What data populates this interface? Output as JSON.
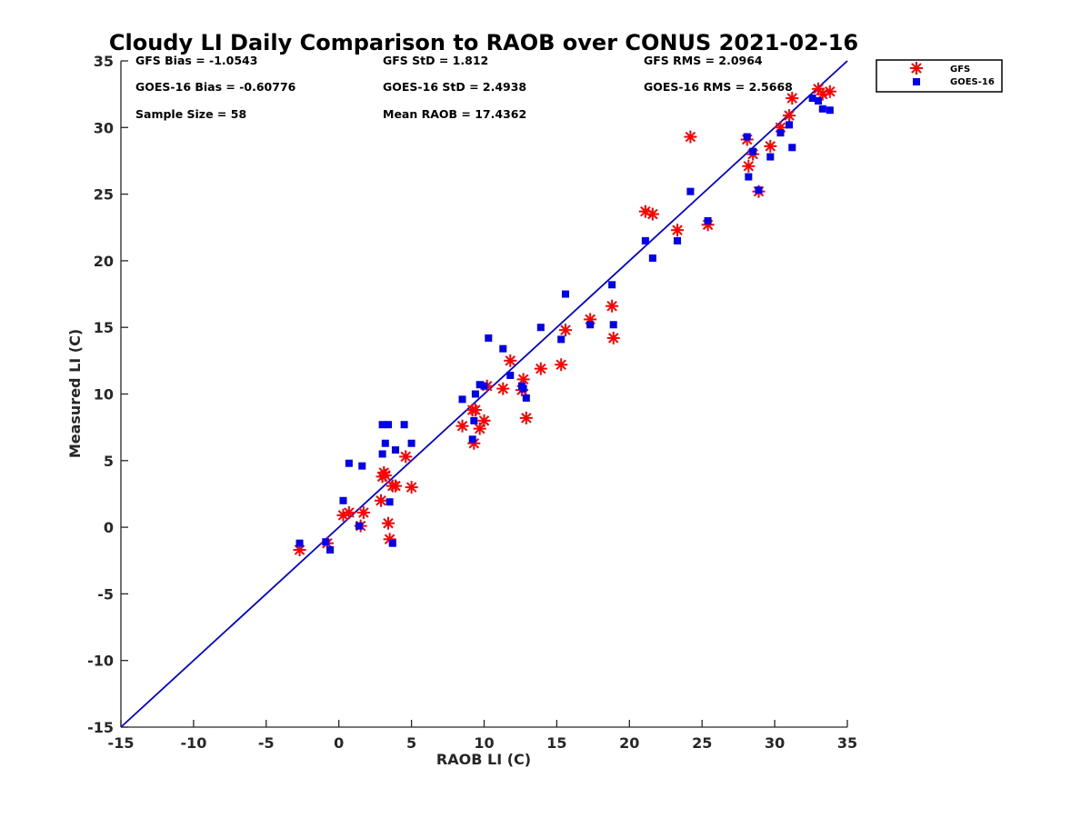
{
  "chart_data": {
    "type": "scatter",
    "title": "Cloudy LI Daily Comparison to RAOB over CONUS 2021-02-16",
    "xlabel": "RAOB LI (C)",
    "ylabel": "Measured LI (C)",
    "xlim": [
      -15,
      35
    ],
    "ylim": [
      -15,
      35
    ],
    "xticks": [
      -15,
      -10,
      -5,
      0,
      5,
      10,
      15,
      20,
      25,
      30,
      35
    ],
    "yticks": [
      -15,
      -10,
      -5,
      0,
      5,
      10,
      15,
      20,
      25,
      30,
      35
    ],
    "grid": false,
    "legend_position": "outside-top-right",
    "reference_line": {
      "x": [
        -15,
        35
      ],
      "y": [
        -15,
        35
      ],
      "color": "#0000dd"
    },
    "stats": [
      "GFS Bias = -1.0543",
      "GFS StD = 1.812",
      "GFS RMS = 2.0964",
      "GOES-16 Bias = -0.60776",
      "GOES-16 StD = 2.4938",
      "GOES-16 RMS = 2.5668",
      "Sample Size = 58",
      "Mean RAOB = 17.4362"
    ],
    "series": [
      {
        "name": "GFS",
        "marker": "asterisk",
        "color": "#ff0000",
        "x": [
          -2.7,
          -0.8,
          0.3,
          0.7,
          1.5,
          1.7,
          2.9,
          3.0,
          3.1,
          3.2,
          3.4,
          3.5,
          3.7,
          3.9,
          4.6,
          5.0,
          8.5,
          9.2,
          9.3,
          9.4,
          9.7,
          10.0,
          10.2,
          11.3,
          11.8,
          12.6,
          12.7,
          12.9,
          13.9,
          15.3,
          15.6,
          17.3,
          18.8,
          18.9,
          21.1,
          21.6,
          23.3,
          24.2,
          25.4,
          28.1,
          28.2,
          28.5,
          28.9,
          29.7,
          30.4,
          31.0,
          31.2,
          33.0,
          33.3,
          33.8
        ],
        "y": [
          -1.7,
          -1.2,
          0.9,
          1.1,
          0.1,
          1.1,
          2.0,
          3.8,
          4.1,
          3.9,
          0.3,
          -0.9,
          3.1,
          3.1,
          5.3,
          3.0,
          7.6,
          8.8,
          6.3,
          8.8,
          7.4,
          8.0,
          10.6,
          10.4,
          12.5,
          10.3,
          11.1,
          8.2,
          11.9,
          12.2,
          14.8,
          15.6,
          16.6,
          14.2,
          23.7,
          23.5,
          22.3,
          29.3,
          22.7,
          29.1,
          27.1,
          28.0,
          25.2,
          28.6,
          30.0,
          30.9,
          32.2,
          32.9,
          32.5,
          32.7
        ]
      },
      {
        "name": "GOES-16",
        "marker": "square",
        "color": "#0000ee",
        "x": [
          -2.7,
          -0.9,
          -0.6,
          0.3,
          0.7,
          1.4,
          1.6,
          3.0,
          3.0,
          3.2,
          3.4,
          3.5,
          3.7,
          3.9,
          4.5,
          5.0,
          8.5,
          9.2,
          9.3,
          9.4,
          9.7,
          10.0,
          10.3,
          11.3,
          11.8,
          12.6,
          12.7,
          12.9,
          13.9,
          15.3,
          15.6,
          17.3,
          18.8,
          18.9,
          21.1,
          21.6,
          23.3,
          24.2,
          25.4,
          28.1,
          28.2,
          28.5,
          28.9,
          29.7,
          30.4,
          31.0,
          31.2,
          32.6,
          33.0,
          33.3,
          33.8
        ],
        "y": [
          -1.2,
          -1.1,
          -1.7,
          2.0,
          4.8,
          0.1,
          4.6,
          5.5,
          7.7,
          6.3,
          7.7,
          1.9,
          -1.2,
          5.8,
          7.7,
          6.3,
          9.6,
          6.6,
          8.0,
          10.0,
          10.7,
          10.6,
          14.2,
          13.4,
          11.4,
          10.6,
          10.4,
          9.7,
          15.0,
          14.1,
          17.5,
          15.2,
          18.2,
          15.2,
          21.5,
          20.2,
          21.5,
          25.2,
          23.0,
          29.3,
          26.3,
          28.2,
          25.3,
          27.8,
          29.6,
          30.2,
          28.5,
          32.2,
          32.0,
          31.4,
          31.3
        ]
      }
    ]
  }
}
